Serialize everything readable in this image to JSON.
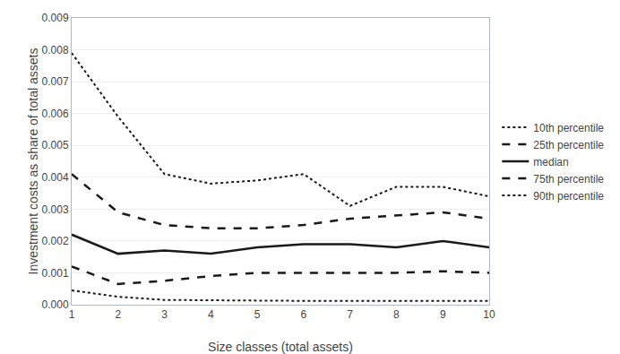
{
  "chart_data": {
    "type": "line",
    "x": [
      1,
      2,
      3,
      4,
      5,
      6,
      7,
      8,
      9,
      10
    ],
    "series": [
      {
        "name": "10th percentile",
        "color": "#1a1a1a",
        "line_style": "dotted",
        "values": [
          0.0079,
          0.0059,
          0.0041,
          0.0038,
          0.0039,
          0.0041,
          0.0031,
          0.0037,
          0.0037,
          0.0034
        ]
      },
      {
        "name": "25th percentile",
        "color": "#1a1a1a",
        "line_style": "dashed",
        "values": [
          0.0041,
          0.0029,
          0.0025,
          0.0024,
          0.0024,
          0.0025,
          0.0027,
          0.0028,
          0.0029,
          0.0027
        ]
      },
      {
        "name": "median",
        "color": "#1a1a1a",
        "line_style": "solid",
        "values": [
          0.0022,
          0.0016,
          0.0017,
          0.0016,
          0.0018,
          0.0019,
          0.0019,
          0.0018,
          0.002,
          0.0018
        ]
      },
      {
        "name": "75th percentile",
        "color": "#1a1a1a",
        "line_style": "dashed",
        "values": [
          0.0012,
          0.00065,
          0.00075,
          0.0009,
          0.001,
          0.001,
          0.001,
          0.001,
          0.00105,
          0.001
        ]
      },
      {
        "name": "90th percentile",
        "color": "#1a1a1a",
        "line_style": "dotted",
        "values": [
          0.00045,
          0.00025,
          0.00015,
          0.00015,
          0.00013,
          0.00012,
          0.00012,
          0.00012,
          0.00012,
          0.00012
        ]
      }
    ],
    "xlabel": "Size classes (total assets)",
    "ylabel": "Investment costs as share of total assets",
    "xlim": [
      1,
      10
    ],
    "xticks": [
      1,
      2,
      3,
      4,
      5,
      6,
      7,
      8,
      9,
      10
    ],
    "ylim": [
      0,
      0.009
    ],
    "yticks": [
      {
        "value": 0,
        "label": "0.000"
      },
      0.001,
      0.002,
      0.003,
      0.004,
      0.005,
      0.006,
      0.007,
      0.008,
      0.009
    ],
    "grid": true,
    "legend": "right"
  }
}
